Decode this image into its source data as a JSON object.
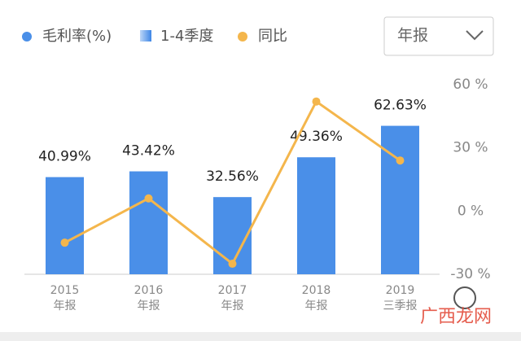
{
  "chart_data": {
    "type": "bar-line",
    "categories": [
      "2015",
      "2016",
      "2017",
      "2018",
      "2019"
    ],
    "category_sublabels": [
      "年报",
      "年报",
      "年报",
      "年报",
      "三季报"
    ],
    "series": [
      {
        "name": "毛利率(%)",
        "type": "bar",
        "color": "#4a8fe8",
        "values": [
          40.99,
          43.42,
          32.56,
          49.36,
          62.63
        ],
        "value_labels": [
          "40.99%",
          "43.42%",
          "32.56%",
          "49.36%",
          "62.63%"
        ]
      },
      {
        "name": "同比",
        "type": "line",
        "axis": "y2",
        "color": "#f4b64c",
        "values": [
          -15,
          6,
          -25,
          52,
          24
        ]
      }
    ],
    "quarter_legend": "1-4季度",
    "period_select": "年报",
    "ylim": [
      0,
      80
    ],
    "y2lim": [
      -30,
      60
    ],
    "y2ticks": [
      {
        "value": 60,
        "label": "60 %"
      },
      {
        "value": 30,
        "label": "30 %"
      },
      {
        "value": 0,
        "label": "0 %"
      },
      {
        "value": -30,
        "label": "-30 %"
      }
    ],
    "watermark": "广西龙网"
  }
}
